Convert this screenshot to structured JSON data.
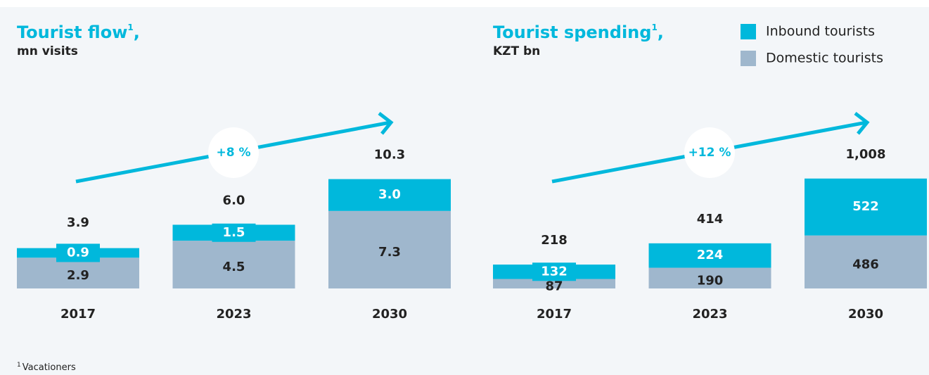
{
  "legend": {
    "items": [
      {
        "name": "Inbound tourists",
        "color": "#00b8dc"
      },
      {
        "name": "Domestic tourists",
        "color": "#9fb7cd"
      }
    ]
  },
  "chart_data": [
    {
      "type": "bar",
      "stacked": true,
      "title": "Tourist flow",
      "title_mark": "1",
      "title_suffix": ",",
      "subtitle": "mn visits",
      "categories": [
        "2017",
        "2023",
        "2030"
      ],
      "series": [
        {
          "color": "#9fb7cd",
          "values": [
            2.9,
            4.5,
            7.3
          ]
        },
        {
          "color": "#00b8dc",
          "values": [
            0.9,
            1.5,
            3.0
          ],
          "value_labels": [
            "0.9",
            "1.5",
            "3.0"
          ]
        }
      ],
      "totals": [
        3.9,
        6.0,
        10.3
      ],
      "total_labels": [
        "3.9",
        "6.0",
        "10.3"
      ],
      "annotation": "+8 %",
      "ylim": [
        0,
        11
      ]
    },
    {
      "type": "bar",
      "stacked": true,
      "title": "Tourist spending",
      "title_mark": "1",
      "title_suffix": ",",
      "subtitle": "KZT bn",
      "categories": [
        "2017",
        "2023",
        "2030"
      ],
      "series": [
        {
          "color": "#9fb7cd",
          "values": [
            87,
            190,
            486
          ]
        },
        {
          "color": "#00b8dc",
          "values": [
            132,
            224,
            522
          ]
        }
      ],
      "totals": [
        218,
        414,
        1008
      ],
      "total_labels": [
        "218",
        "414",
        "1,008"
      ],
      "annotation": "+12 %",
      "ylim": [
        0,
        1071
      ]
    }
  ],
  "footnote": {
    "mark": "1",
    "text": "Vacationers"
  }
}
